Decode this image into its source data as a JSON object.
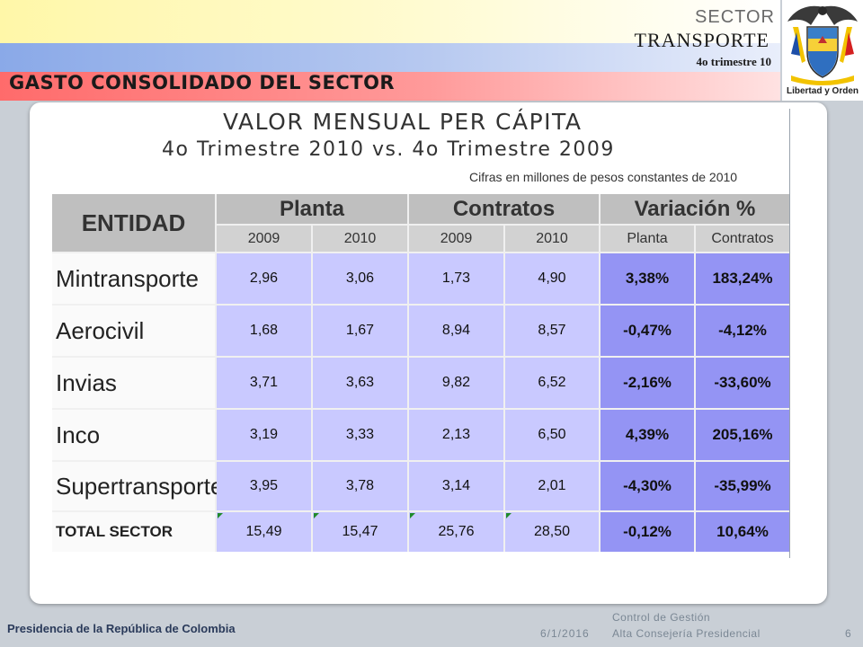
{
  "header": {
    "sector": "SECTOR",
    "transporte": "TRANSPORTE",
    "trimestre": "4o trimestre 10",
    "page_title": "GASTO CONSOLIDADO DEL SECTOR",
    "logo_motto": "Libertad y Orden"
  },
  "chart": {
    "title": "VALOR MENSUAL PER CÁPITA",
    "subtitle": "4o Trimestre 2010 vs.  4o Trimestre 2009",
    "note": "Cifras en millones de pesos constantes de 2010"
  },
  "table": {
    "entity_header": "ENTIDAD",
    "groups": {
      "planta": "Planta",
      "contratos": "Contratos",
      "variacion": "Variación %"
    },
    "years": {
      "p2009": "2009",
      "p2010": "2010",
      "c2009": "2009",
      "c2010": "2010"
    },
    "var_cols": {
      "planta": "Planta",
      "contratos": "Contratos"
    },
    "rows": [
      {
        "entidad": "Mintransporte",
        "p2009": "2,96",
        "p2010": "3,06",
        "c2009": "1,73",
        "c2010": "4,90",
        "var_planta": "3,38%",
        "var_contratos": "183,24%"
      },
      {
        "entidad": "Aerocivil",
        "p2009": "1,68",
        "p2010": "1,67",
        "c2009": "8,94",
        "c2010": "8,57",
        "var_planta": "-0,47%",
        "var_contratos": "-4,12%"
      },
      {
        "entidad": "Invias",
        "p2009": "3,71",
        "p2010": "3,63",
        "c2009": "9,82",
        "c2010": "6,52",
        "var_planta": "-2,16%",
        "var_contratos": "-33,60%"
      },
      {
        "entidad": "Inco",
        "p2009": "3,19",
        "p2010": "3,33",
        "c2009": "2,13",
        "c2010": "6,50",
        "var_planta": "4,39%",
        "var_contratos": "205,16%"
      },
      {
        "entidad": "Supertransporte",
        "p2009": "3,95",
        "p2010": "3,78",
        "c2009": "3,14",
        "c2010": "2,01",
        "var_planta": "-4,30%",
        "var_contratos": "-35,99%"
      }
    ],
    "total": {
      "entidad": "TOTAL SECTOR",
      "p2009": "15,49",
      "p2010": "15,47",
      "c2009": "25,76",
      "c2010": "28,50",
      "var_planta": "-0,12%",
      "var_contratos": "10,64%"
    }
  },
  "footer": {
    "org": "Presidencia de la República de Colombia",
    "date": "6/1/2016",
    "control_line1": "Control de Gestión",
    "control_line2": "Alta Consejería Presidencial",
    "page_number": "6"
  }
}
